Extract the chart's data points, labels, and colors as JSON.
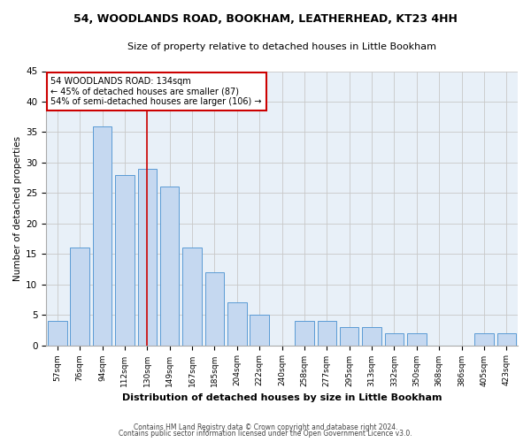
{
  "title1": "54, WOODLANDS ROAD, BOOKHAM, LEATHERHEAD, KT23 4HH",
  "title2": "Size of property relative to detached houses in Little Bookham",
  "xlabel": "Distribution of detached houses by size in Little Bookham",
  "ylabel": "Number of detached properties",
  "categories": [
    "57sqm",
    "76sqm",
    "94sqm",
    "112sqm",
    "130sqm",
    "149sqm",
    "167sqm",
    "185sqm",
    "204sqm",
    "222sqm",
    "240sqm",
    "258sqm",
    "277sqm",
    "295sqm",
    "313sqm",
    "332sqm",
    "350sqm",
    "368sqm",
    "386sqm",
    "405sqm",
    "423sqm"
  ],
  "values": [
    4,
    16,
    36,
    28,
    29,
    26,
    16,
    12,
    7,
    5,
    0,
    4,
    4,
    3,
    3,
    2,
    2,
    0,
    0,
    2,
    2
  ],
  "bar_color": "#c5d8f0",
  "bar_edge_color": "#5b9bd5",
  "highlight_index": 4,
  "red_line_color": "#cc0000",
  "annotation_text": "54 WOODLANDS ROAD: 134sqm\n← 45% of detached houses are smaller (87)\n54% of semi-detached houses are larger (106) →",
  "annotation_box_color": "#ffffff",
  "annotation_box_edge_color": "#cc0000",
  "ylim": [
    0,
    45
  ],
  "yticks": [
    0,
    5,
    10,
    15,
    20,
    25,
    30,
    35,
    40,
    45
  ],
  "footer1": "Contains HM Land Registry data © Crown copyright and database right 2024.",
  "footer2": "Contains public sector information licensed under the Open Government Licence v3.0.",
  "bg_color": "#ffffff",
  "plot_bg_color": "#e8f0f8",
  "grid_color": "#c8c8c8"
}
